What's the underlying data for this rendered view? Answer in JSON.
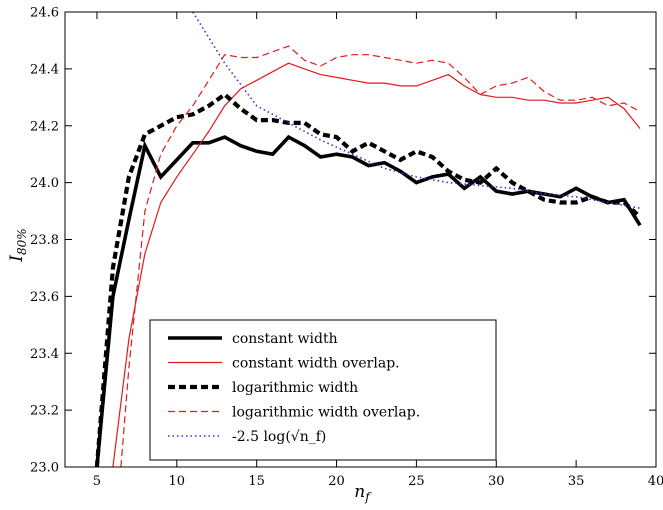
{
  "chart_data": {
    "type": "line",
    "xlabel": "n_f",
    "ylabel": "I_80%",
    "xlim": [
      3,
      40
    ],
    "ylim": [
      23.0,
      24.6
    ],
    "x_ticks": [
      "5",
      "10",
      "15",
      "20",
      "25",
      "30",
      "35",
      "40"
    ],
    "y_ticks": [
      "23.0",
      "23.2",
      "23.4",
      "23.6",
      "23.8",
      "24.0",
      "24.2",
      "24.4",
      "24.6"
    ],
    "legend_position": "lower-center",
    "grid": false,
    "series": [
      {
        "name": "constant width",
        "color": "#000000",
        "style": "solid-thick",
        "x": [
          5,
          6,
          7,
          8,
          9,
          10,
          11,
          12,
          13,
          14,
          15,
          16,
          17,
          18,
          19,
          20,
          21,
          22,
          23,
          24,
          25,
          26,
          27,
          28,
          29,
          30,
          31,
          32,
          33,
          34,
          35,
          36,
          37,
          38,
          39
        ],
        "y": [
          23.0,
          23.6,
          23.87,
          24.13,
          24.02,
          24.08,
          24.14,
          24.14,
          24.16,
          24.13,
          24.11,
          24.1,
          24.16,
          24.13,
          24.09,
          24.1,
          24.09,
          24.06,
          24.07,
          24.04,
          24.0,
          24.02,
          24.03,
          23.98,
          24.02,
          23.97,
          23.96,
          23.97,
          23.96,
          23.95,
          23.98,
          23.95,
          23.93,
          23.94,
          23.85
        ]
      },
      {
        "name": "constant width overlap.",
        "color": "#e31a1c",
        "style": "solid-thin",
        "x": [
          6,
          7,
          8,
          9,
          10,
          11,
          12,
          13,
          14,
          15,
          16,
          17,
          18,
          19,
          20,
          21,
          22,
          23,
          24,
          25,
          26,
          27,
          28,
          29,
          30,
          31,
          32,
          33,
          34,
          35,
          36,
          37,
          38,
          39
        ],
        "y": [
          23.0,
          23.45,
          23.75,
          23.93,
          24.02,
          24.1,
          24.18,
          24.27,
          24.33,
          24.36,
          24.39,
          24.42,
          24.4,
          24.38,
          24.37,
          24.36,
          24.35,
          24.35,
          24.34,
          24.34,
          24.36,
          24.38,
          24.34,
          24.31,
          24.3,
          24.3,
          24.29,
          24.29,
          24.28,
          24.28,
          24.29,
          24.3,
          24.26,
          24.19
        ]
      },
      {
        "name": "logarithmic width",
        "color": "#000000",
        "style": "dashed-thick",
        "x": [
          5,
          6,
          7,
          8,
          9,
          10,
          11,
          12,
          13,
          14,
          15,
          16,
          17,
          18,
          19,
          20,
          21,
          22,
          23,
          24,
          25,
          26,
          27,
          28,
          29,
          30,
          31,
          32,
          33,
          34,
          35,
          36,
          37,
          38,
          39
        ],
        "y": [
          23.0,
          23.7,
          24.02,
          24.17,
          24.2,
          24.23,
          24.24,
          24.27,
          24.31,
          24.26,
          24.22,
          24.22,
          24.21,
          24.21,
          24.17,
          24.16,
          24.11,
          24.14,
          24.11,
          24.08,
          24.11,
          24.09,
          24.04,
          24.01,
          24.0,
          24.05,
          24.0,
          23.97,
          23.94,
          23.93,
          23.93,
          23.95,
          23.93,
          23.93,
          23.88
        ]
      },
      {
        "name": "logarithmic width overlap.",
        "color": "#e31a1c",
        "style": "dashed-thin",
        "x": [
          6.5,
          7,
          8,
          9,
          10,
          11,
          12,
          13,
          14,
          15,
          16,
          17,
          18,
          19,
          20,
          21,
          22,
          23,
          24,
          25,
          26,
          27,
          28,
          29,
          30,
          31,
          32,
          33,
          34,
          35,
          36,
          37,
          38,
          39
        ],
        "y": [
          23.0,
          23.35,
          23.9,
          24.1,
          24.2,
          24.27,
          24.36,
          24.45,
          24.44,
          24.44,
          24.46,
          24.48,
          24.43,
          24.41,
          24.44,
          24.45,
          24.45,
          24.44,
          24.43,
          24.42,
          24.43,
          24.42,
          24.37,
          24.31,
          24.34,
          24.35,
          24.37,
          24.32,
          24.29,
          24.29,
          24.3,
          24.27,
          24.28,
          24.25
        ]
      },
      {
        "name": "-2.5 log(√n_f)",
        "color": "#3333dd",
        "style": "dotted",
        "formula": "-2.5*log10(sqrt(n_f)) + const",
        "x": [
          11,
          13,
          15,
          17,
          19,
          21,
          23,
          25,
          27,
          29,
          31,
          33,
          35,
          37,
          39
        ],
        "y": [
          24.6,
          24.42,
          24.27,
          24.21,
          24.15,
          24.1,
          24.05,
          24.02,
          24.0,
          23.99,
          23.98,
          23.96,
          23.95,
          23.93,
          23.91
        ]
      }
    ]
  }
}
